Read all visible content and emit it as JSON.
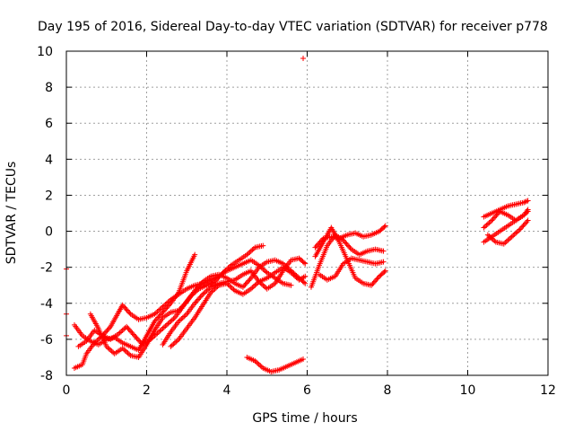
{
  "chart_data": {
    "type": "scatter",
    "title": "Day 195 of 2016, Sidereal Day-to-day VTEC variation (SDTVAR) for receiver p778",
    "xlabel": "GPS time / hours",
    "ylabel": "SDTVAR / TECUs",
    "xlim": [
      0,
      12
    ],
    "ylim": [
      -8,
      10
    ],
    "xticks": [
      0,
      2,
      4,
      6,
      8,
      10,
      12
    ],
    "yticks": [
      -8,
      -6,
      -4,
      -2,
      0,
      2,
      4,
      6,
      8,
      10
    ],
    "grid": true,
    "marker": "+",
    "color": "#ff0000",
    "tracks": [
      [
        [
          0.2,
          -5.2
        ],
        [
          0.4,
          -5.8
        ],
        [
          0.6,
          -6.1
        ],
        [
          0.8,
          -6.3
        ],
        [
          1.0,
          -6.0
        ],
        [
          1.2,
          -5.9
        ],
        [
          1.4,
          -6.2
        ],
        [
          1.6,
          -6.4
        ],
        [
          1.8,
          -6.6
        ],
        [
          2.0,
          -5.8
        ],
        [
          2.2,
          -5.0
        ],
        [
          2.4,
          -4.5
        ],
        [
          2.6,
          -4.0
        ],
        [
          2.8,
          -3.4
        ],
        [
          3.0,
          -2.2
        ],
        [
          3.2,
          -1.3
        ]
      ],
      [
        [
          0.3,
          -6.4
        ],
        [
          0.5,
          -6.1
        ],
        [
          0.7,
          -5.5
        ],
        [
          0.9,
          -5.8
        ],
        [
          1.1,
          -6.0
        ],
        [
          1.3,
          -5.7
        ],
        [
          1.5,
          -5.3
        ],
        [
          1.7,
          -5.8
        ],
        [
          1.9,
          -6.3
        ],
        [
          2.1,
          -6.0
        ],
        [
          2.3,
          -5.6
        ],
        [
          2.5,
          -5.2
        ],
        [
          2.7,
          -4.8
        ],
        [
          2.9,
          -4.2
        ],
        [
          3.1,
          -3.6
        ],
        [
          3.3,
          -3.2
        ],
        [
          3.5,
          -3.0
        ],
        [
          3.7,
          -2.8
        ],
        [
          3.9,
          -2.3
        ],
        [
          4.1,
          -1.9
        ],
        [
          4.3,
          -1.6
        ],
        [
          4.5,
          -1.3
        ],
        [
          4.7,
          -0.9
        ],
        [
          4.9,
          -0.8
        ]
      ],
      [
        [
          0.2,
          -7.6
        ],
        [
          0.4,
          -7.4
        ],
        [
          0.5,
          -6.8
        ],
        [
          0.7,
          -6.2
        ],
        [
          0.9,
          -5.8
        ],
        [
          1.1,
          -5.3
        ],
        [
          1.3,
          -4.5
        ],
        [
          1.4,
          -4.1
        ],
        [
          1.6,
          -4.6
        ],
        [
          1.8,
          -4.9
        ],
        [
          2.0,
          -4.8
        ],
        [
          2.2,
          -4.6
        ],
        [
          2.4,
          -4.2
        ],
        [
          2.6,
          -3.8
        ],
        [
          2.8,
          -3.5
        ],
        [
          3.0,
          -3.2
        ],
        [
          3.2,
          -3.0
        ],
        [
          3.4,
          -2.9
        ],
        [
          3.6,
          -2.7
        ],
        [
          3.8,
          -2.5
        ],
        [
          4.0,
          -2.2
        ],
        [
          4.2,
          -2.0
        ],
        [
          4.4,
          -1.8
        ],
        [
          4.6,
          -1.6
        ],
        [
          4.8,
          -1.9
        ],
        [
          5.0,
          -2.3
        ],
        [
          5.2,
          -2.6
        ],
        [
          5.4,
          -2.9
        ],
        [
          5.6,
          -3.0
        ]
      ],
      [
        [
          0.6,
          -4.6
        ],
        [
          0.8,
          -5.4
        ],
        [
          1.0,
          -6.4
        ],
        [
          1.2,
          -6.8
        ],
        [
          1.4,
          -6.5
        ],
        [
          1.6,
          -6.9
        ],
        [
          1.8,
          -7.0
        ],
        [
          2.0,
          -6.3
        ],
        [
          2.2,
          -5.5
        ],
        [
          2.4,
          -4.8
        ],
        [
          2.6,
          -4.5
        ],
        [
          2.8,
          -4.4
        ],
        [
          3.0,
          -3.9
        ],
        [
          3.2,
          -3.3
        ],
        [
          3.4,
          -2.8
        ],
        [
          3.6,
          -2.5
        ],
        [
          3.8,
          -2.4
        ],
        [
          4.0,
          -2.6
        ],
        [
          4.2,
          -2.9
        ],
        [
          4.4,
          -3.1
        ],
        [
          4.6,
          -2.6
        ],
        [
          4.8,
          -2.0
        ],
        [
          5.0,
          -1.7
        ],
        [
          5.2,
          -1.6
        ],
        [
          5.4,
          -1.8
        ],
        [
          5.6,
          -2.2
        ],
        [
          5.8,
          -2.6
        ],
        [
          5.95,
          -2.9
        ]
      ],
      [
        [
          2.4,
          -6.3
        ],
        [
          2.6,
          -5.6
        ],
        [
          2.8,
          -5.0
        ],
        [
          3.0,
          -4.6
        ],
        [
          3.2,
          -4.0
        ],
        [
          3.4,
          -3.5
        ],
        [
          3.6,
          -3.1
        ],
        [
          3.8,
          -2.9
        ],
        [
          4.0,
          -2.8
        ],
        [
          4.2,
          -2.7
        ],
        [
          4.4,
          -2.4
        ],
        [
          4.6,
          -2.2
        ],
        [
          4.8,
          -2.8
        ],
        [
          5.0,
          -3.2
        ],
        [
          5.2,
          -2.9
        ],
        [
          5.4,
          -2.2
        ],
        [
          5.6,
          -1.6
        ],
        [
          5.8,
          -1.5
        ],
        [
          5.95,
          -1.8
        ]
      ],
      [
        [
          2.6,
          -6.4
        ],
        [
          2.8,
          -6.0
        ],
        [
          3.0,
          -5.4
        ],
        [
          3.2,
          -4.8
        ],
        [
          3.4,
          -4.1
        ],
        [
          3.6,
          -3.4
        ],
        [
          3.8,
          -3.0
        ],
        [
          4.0,
          -2.9
        ],
        [
          4.2,
          -3.3
        ],
        [
          4.4,
          -3.5
        ],
        [
          4.6,
          -3.2
        ],
        [
          4.8,
          -2.8
        ],
        [
          5.0,
          -2.6
        ],
        [
          5.2,
          -2.3
        ],
        [
          5.4,
          -2.0
        ],
        [
          5.6,
          -2.3
        ],
        [
          5.8,
          -2.7
        ],
        [
          5.95,
          -2.5
        ]
      ],
      [
        [
          4.5,
          -7.0
        ],
        [
          4.7,
          -7.2
        ],
        [
          4.9,
          -7.6
        ],
        [
          5.1,
          -7.8
        ],
        [
          5.3,
          -7.7
        ],
        [
          5.5,
          -7.5
        ],
        [
          5.7,
          -7.3
        ],
        [
          5.9,
          -7.1
        ]
      ],
      [
        [
          6.1,
          -3.1
        ],
        [
          6.3,
          -1.9
        ],
        [
          6.5,
          -0.8
        ],
        [
          6.7,
          -0.2
        ],
        [
          6.9,
          -0.5
        ],
        [
          7.1,
          -1.0
        ],
        [
          7.3,
          -1.3
        ],
        [
          7.5,
          -1.1
        ],
        [
          7.7,
          -1.0
        ],
        [
          7.9,
          -1.1
        ]
      ],
      [
        [
          6.2,
          -1.4
        ],
        [
          6.4,
          -0.6
        ],
        [
          6.6,
          0.2
        ],
        [
          6.8,
          -0.6
        ],
        [
          7.0,
          -1.6
        ],
        [
          7.2,
          -2.6
        ],
        [
          7.4,
          -2.9
        ],
        [
          7.6,
          -3.0
        ],
        [
          7.8,
          -2.5
        ],
        [
          7.95,
          -2.2
        ]
      ],
      [
        [
          6.2,
          -0.9
        ],
        [
          6.4,
          -0.4
        ],
        [
          6.6,
          -0.3
        ],
        [
          6.8,
          -0.4
        ],
        [
          7.0,
          -0.2
        ],
        [
          7.2,
          -0.1
        ],
        [
          7.4,
          -0.3
        ],
        [
          7.6,
          -0.2
        ],
        [
          7.8,
          0.0
        ],
        [
          7.95,
          0.3
        ]
      ],
      [
        [
          6.3,
          -2.4
        ],
        [
          6.5,
          -2.7
        ],
        [
          6.7,
          -2.5
        ],
        [
          6.9,
          -1.8
        ],
        [
          7.1,
          -1.5
        ],
        [
          7.3,
          -1.6
        ],
        [
          7.5,
          -1.7
        ],
        [
          7.7,
          -1.8
        ],
        [
          7.9,
          -1.7
        ]
      ],
      [
        [
          10.4,
          0.8
        ],
        [
          10.6,
          1.0
        ],
        [
          10.8,
          1.2
        ],
        [
          11.0,
          1.4
        ],
        [
          11.2,
          1.5
        ],
        [
          11.4,
          1.6
        ],
        [
          11.5,
          1.7
        ]
      ],
      [
        [
          10.4,
          0.2
        ],
        [
          10.6,
          0.6
        ],
        [
          10.8,
          1.1
        ],
        [
          11.0,
          0.9
        ],
        [
          11.2,
          0.6
        ],
        [
          11.4,
          0.9
        ],
        [
          11.5,
          1.2
        ]
      ],
      [
        [
          10.4,
          -0.6
        ],
        [
          10.6,
          -0.3
        ],
        [
          10.8,
          0.0
        ],
        [
          11.0,
          0.3
        ],
        [
          11.2,
          0.6
        ],
        [
          11.4,
          0.9
        ],
        [
          11.5,
          1.1
        ]
      ],
      [
        [
          10.5,
          -0.2
        ],
        [
          10.7,
          -0.6
        ],
        [
          10.9,
          -0.7
        ],
        [
          11.1,
          -0.3
        ],
        [
          11.3,
          0.1
        ],
        [
          11.5,
          0.6
        ]
      ]
    ],
    "isolated_points": [
      [
        5.9,
        9.6
      ],
      [
        0.0,
        -2.1
      ],
      [
        0.0,
        -4.6
      ],
      [
        0.0,
        -5.8
      ]
    ]
  }
}
